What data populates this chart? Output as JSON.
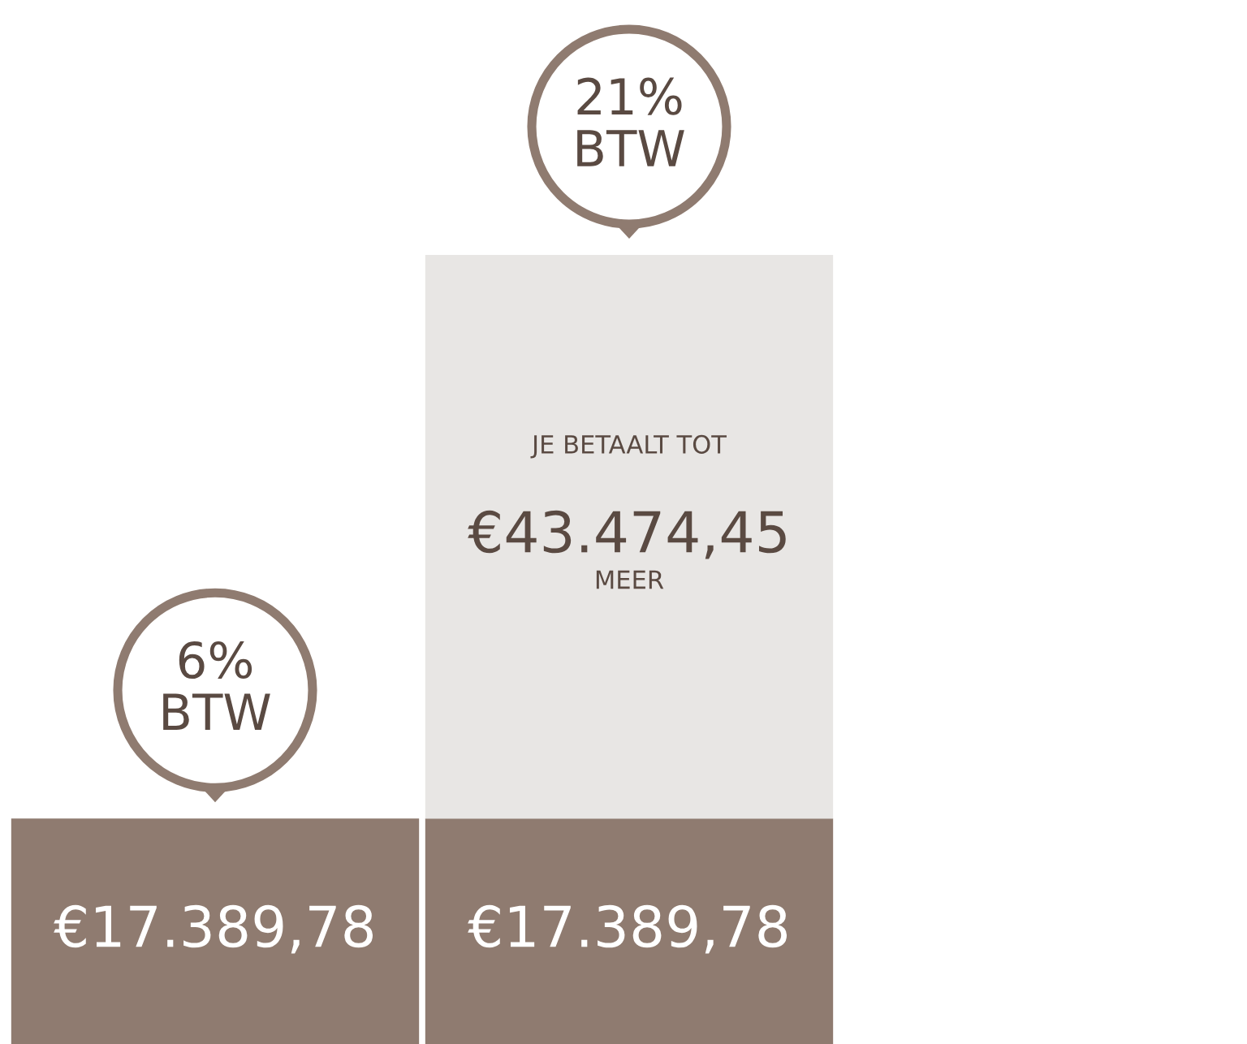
{
  "chart_data": {
    "type": "bar",
    "stacked": true,
    "categories": [
      null,
      null
    ],
    "series": [
      {
        "color": "#8f7b70",
        "values": [
          17389.78,
          17389.78
        ],
        "value_labels": [
          "€17.389,78",
          "€17.389,78"
        ]
      },
      {
        "color": "#e8e6e4",
        "values": [
          null,
          43474.45
        ],
        "value_labels": [
          null,
          "€43.474,45"
        ]
      }
    ],
    "annotations": [
      "6%\nBTW",
      "21%\nBTW",
      "JE BETAALT TOT",
      "MEER"
    ],
    "grid": false
  }
}
